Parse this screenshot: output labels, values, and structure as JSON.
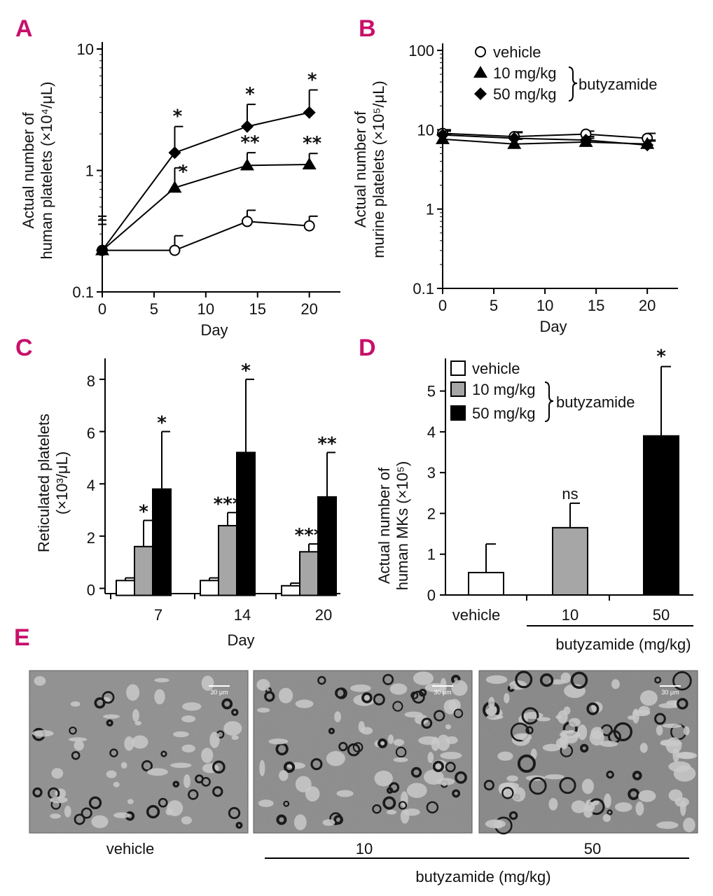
{
  "chart_data": [
    {
      "panel": "A",
      "type": "line",
      "yscale": "log",
      "ylim": [
        0.1,
        10
      ],
      "xlim": [
        0,
        23
      ],
      "yticks": [
        "0.1",
        "1",
        "10"
      ],
      "xticks": [
        "0",
        "5",
        "10",
        "15",
        "20"
      ],
      "xlabel": "Day",
      "ylabel_lines": [
        "Actual number of",
        "human platelets (×10⁴/μL)"
      ],
      "series": [
        {
          "name": "vehicle",
          "marker": "circle",
          "x": [
            0,
            7,
            14,
            20
          ],
          "y": [
            0.22,
            0.22,
            0.38,
            0.35
          ],
          "err": [
            null,
            0.29,
            0.47,
            0.42
          ],
          "sig": [
            "",
            "",
            "",
            ""
          ]
        },
        {
          "name": "10 mg/kg",
          "marker": "triangle",
          "x": [
            0,
            7,
            14,
            20
          ],
          "y": [
            0.22,
            0.72,
            1.1,
            1.12
          ],
          "err": [
            null,
            1.05,
            1.4,
            1.38
          ],
          "sig": [
            "",
            "*",
            "**",
            "**"
          ]
        },
        {
          "name": "50 mg/kg",
          "marker": "diamond",
          "x": [
            0,
            7,
            14,
            20
          ],
          "y": [
            0.22,
            1.4,
            2.3,
            3.0
          ],
          "err": [
            null,
            2.3,
            3.5,
            4.6
          ],
          "sig": [
            "",
            "*",
            "*",
            "*"
          ]
        }
      ]
    },
    {
      "panel": "B",
      "type": "line",
      "yscale": "log",
      "ylim": [
        0.1,
        100
      ],
      "xlim": [
        0,
        23
      ],
      "yticks": [
        "0.1",
        "1",
        "10",
        "100"
      ],
      "xticks": [
        "0",
        "5",
        "10",
        "15",
        "20"
      ],
      "xlabel": "Day",
      "ylabel_lines": [
        "Actual number of",
        "murine platelets (×10⁵/μL)"
      ],
      "legend": {
        "items": [
          "vehicle",
          "10 mg/kg",
          "50 mg/kg"
        ],
        "group_label": "butyzamide"
      },
      "series": [
        {
          "name": "vehicle",
          "marker": "circle",
          "x": [
            0,
            7,
            14,
            20
          ],
          "y": [
            9.0,
            8.2,
            8.8,
            7.8
          ],
          "err": [
            10.0,
            9.2,
            9.6,
            9.0
          ]
        },
        {
          "name": "10 mg/kg",
          "marker": "triangle",
          "x": [
            0,
            7,
            14,
            20
          ],
          "y": [
            7.6,
            6.6,
            7.0,
            6.6
          ],
          "err": [
            8.6,
            7.6,
            7.8,
            7.4
          ]
        },
        {
          "name": "50 mg/kg",
          "marker": "diamond",
          "x": [
            0,
            7,
            14,
            20
          ],
          "y": [
            8.6,
            7.8,
            7.4,
            6.4
          ],
          "err": [
            9.6,
            9.4,
            8.2,
            7.2
          ]
        }
      ]
    },
    {
      "panel": "C",
      "type": "bar",
      "categories": [
        "7",
        "14",
        "20"
      ],
      "ylim": [
        -0.2,
        8.8
      ],
      "yticks": [
        "0",
        "2",
        "4",
        "6",
        "8"
      ],
      "xlabel": "Day",
      "ylabel_lines": [
        "Reticulated platelets",
        "(×10³/μL)"
      ],
      "series": [
        {
          "name": "vehicle",
          "fill": "#ffffff",
          "values": [
            0.3,
            0.3,
            0.1
          ],
          "err": [
            0.4,
            0.4,
            0.2
          ],
          "sig": [
            "",
            "",
            ""
          ]
        },
        {
          "name": "10 mg/kg",
          "fill": "#a6a6a6",
          "values": [
            1.6,
            2.4,
            1.4
          ],
          "err": [
            2.6,
            2.9,
            1.7
          ],
          "sig": [
            "*",
            "***",
            "***"
          ]
        },
        {
          "name": "50 mg/kg",
          "fill": "#000000",
          "values": [
            3.8,
            5.2,
            3.5
          ],
          "err": [
            6.0,
            8.0,
            5.2
          ],
          "sig": [
            "*",
            "*",
            "**"
          ]
        }
      ]
    },
    {
      "panel": "D",
      "type": "bar",
      "categories": [
        "vehicle",
        "10",
        "50"
      ],
      "ylim": [
        0,
        5.8
      ],
      "yticks": [
        "0",
        "1",
        "2",
        "3",
        "4",
        "5"
      ],
      "xlabel": "butyzamide (mg/kg)",
      "ylabel_lines": [
        "Actual number of",
        "human MKs (×10⁵)"
      ],
      "legend": {
        "items": [
          "vehicle",
          "10 mg/kg",
          "50 mg/kg"
        ],
        "group_label": "butyzamide"
      },
      "series": [
        {
          "name": "values",
          "fills": [
            "#ffffff",
            "#a6a6a6",
            "#000000"
          ],
          "values": [
            0.55,
            1.65,
            3.9
          ],
          "err": [
            1.25,
            2.25,
            5.6
          ],
          "sig": [
            "",
            "ns",
            "*"
          ]
        }
      ]
    }
  ],
  "panels": {
    "A": "A",
    "B": "B",
    "C": "C",
    "D": "D",
    "E": "E"
  },
  "micrographs": {
    "scale_bar": "30 μm",
    "labels": [
      "vehicle",
      "10",
      "50"
    ],
    "group_label": "butyzamide (mg/kg)"
  }
}
